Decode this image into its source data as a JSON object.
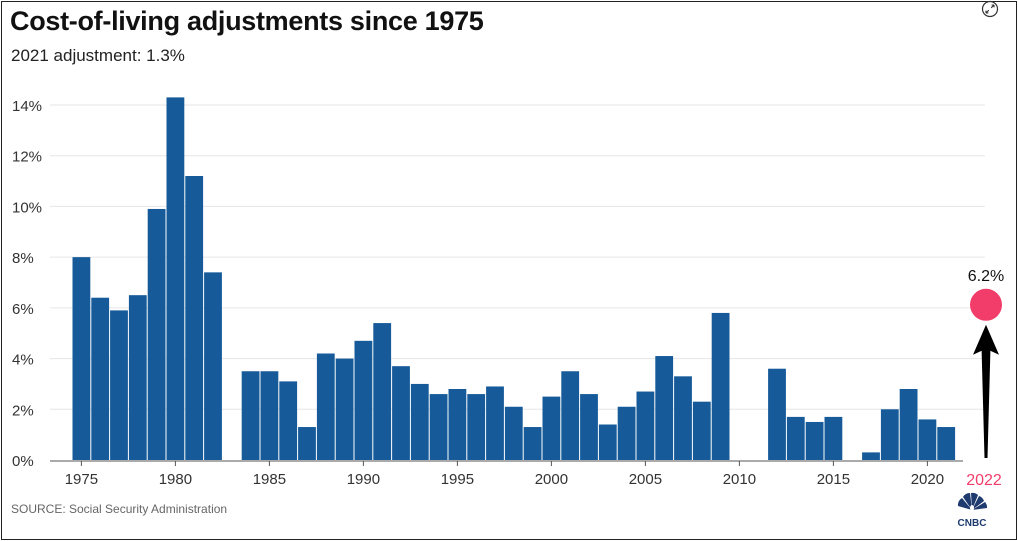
{
  "header": {
    "title": "Cost-of-living adjustments since 1975",
    "subtitle": "2021 adjustment: 1.3%"
  },
  "footer": {
    "source": "SOURCE: Social Security Administration"
  },
  "icons": {
    "expand": "expand-arrows-icon",
    "logo": "cnbc-peacock-logo"
  },
  "logo_text": "CNBC",
  "colors": {
    "bar": "#165a9a",
    "highlight": "#f23c6a",
    "grid": "#e6e6e6",
    "axis_text": "#333333",
    "arrow": "#000000"
  },
  "chart_data": {
    "type": "bar",
    "title": "Cost-of-living adjustments since 1975",
    "subtitle": "2021 adjustment: 1.3%",
    "xlabel": "",
    "ylabel": "",
    "ylim": [
      0,
      14.5
    ],
    "y_ticks": [
      0,
      2,
      4,
      6,
      8,
      10,
      12,
      14
    ],
    "y_tick_labels": [
      "0%",
      "2%",
      "4%",
      "6%",
      "8%",
      "10%",
      "12%",
      "14%"
    ],
    "x_ticks": [
      1975,
      1980,
      1985,
      1990,
      1995,
      2000,
      2005,
      2010,
      2015,
      2020
    ],
    "x_tick_labels": [
      "1975",
      "1980",
      "1985",
      "1990",
      "1995",
      "2000",
      "2005",
      "2010",
      "2015",
      "2020"
    ],
    "grid": true,
    "categories": [
      1975,
      1976,
      1977,
      1978,
      1979,
      1980,
      1981,
      1982,
      1983,
      1984,
      1985,
      1986,
      1987,
      1988,
      1989,
      1990,
      1991,
      1992,
      1993,
      1994,
      1995,
      1996,
      1997,
      1998,
      1999,
      2000,
      2001,
      2002,
      2003,
      2004,
      2005,
      2006,
      2007,
      2008,
      2009,
      2010,
      2011,
      2012,
      2013,
      2014,
      2015,
      2016,
      2017,
      2018,
      2019,
      2020,
      2021
    ],
    "values": [
      8.0,
      6.4,
      5.9,
      6.5,
      9.9,
      14.3,
      11.2,
      7.4,
      0,
      3.5,
      3.5,
      3.1,
      1.3,
      4.2,
      4.0,
      4.7,
      5.4,
      3.7,
      3.0,
      2.6,
      2.8,
      2.6,
      2.9,
      2.1,
      1.3,
      2.5,
      3.5,
      2.6,
      1.4,
      2.1,
      2.7,
      4.1,
      3.3,
      2.3,
      5.8,
      0,
      0,
      3.6,
      1.7,
      1.5,
      1.7,
      0,
      0.3,
      2.0,
      2.8,
      1.6,
      1.3
    ],
    "highlight": {
      "x": 2022,
      "x_label": "2022",
      "value": 6.2,
      "label": "6.2%"
    }
  }
}
